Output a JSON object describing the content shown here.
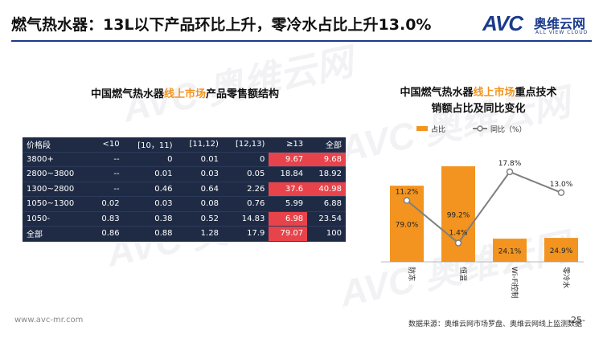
{
  "header": {
    "title": "燃气热水器：13L以下产品环比上升，零冷水占比上升13.0%",
    "logo_mark": "AVC",
    "logo_cn": "奥维云网",
    "logo_en": "ALL VIEW CLOUD",
    "accent_color": "#1b3a8c"
  },
  "left_heading": {
    "pre": "中国燃气热水器",
    "highlight": "线上市场",
    "post": "产品零售额结构"
  },
  "table": {
    "headers": [
      "价格段",
      "<10",
      "[10，11)",
      "[11,12)",
      "[12,13)",
      "≥13",
      "全部"
    ],
    "rows": [
      [
        "3800+",
        "--",
        "0",
        "0.01",
        "0",
        "9.67",
        "9.68"
      ],
      [
        "2800~3800",
        "--",
        "0.01",
        "0.03",
        "0.05",
        "18.84",
        "18.92"
      ],
      [
        "1300~2800",
        "--",
        "0.46",
        "0.64",
        "2.26",
        "37.6",
        "40.98"
      ],
      [
        "1050~1300",
        "0.02",
        "0.03",
        "0.08",
        "0.76",
        "5.99",
        "6.88"
      ],
      [
        "1050-",
        "0.83",
        "0.38",
        "0.52",
        "14.83",
        "6.98",
        "23.54"
      ],
      [
        "全部",
        "0.86",
        "0.88",
        "1.28",
        "17.9",
        "79.07",
        "100"
      ]
    ],
    "highlighted": [
      [
        0,
        5
      ],
      [
        0,
        6
      ],
      [
        2,
        5
      ],
      [
        2,
        6
      ],
      [
        4,
        5
      ],
      [
        5,
        5
      ]
    ],
    "bg_color": "#1f2b45",
    "highlight_color": "#e8434b"
  },
  "right_heading": {
    "line1_pre": "中国燃气热水器",
    "line1_highlight": "线上市场",
    "line1_post": "重点技术",
    "line2": "销额占比及同比变化"
  },
  "chart_data": {
    "type": "bar",
    "categories": [
      "防冻",
      "恒温",
      "Wi-Fi控制",
      "零冷水"
    ],
    "series": [
      {
        "name": "占比",
        "type": "bar",
        "values": [
          79.0,
          99.2,
          24.1,
          24.9
        ],
        "labels": [
          "79.0%",
          "99.2%",
          "24.1%",
          "24.9%"
        ],
        "color": "#f2941f"
      },
      {
        "name": "同比（%）",
        "type": "line",
        "values": [
          11.2,
          1.4,
          17.8,
          13.0
        ],
        "labels": [
          "11.2%",
          "1.4%",
          "17.8%",
          "13.0%"
        ],
        "color": "#7f7f7f"
      }
    ],
    "legend_position": "top"
  },
  "footer": {
    "url": "www.avc-mr.com",
    "source": "数据来源：奥维云网市场罗盘、奥维云网线上监测数据",
    "page": "-25-"
  }
}
